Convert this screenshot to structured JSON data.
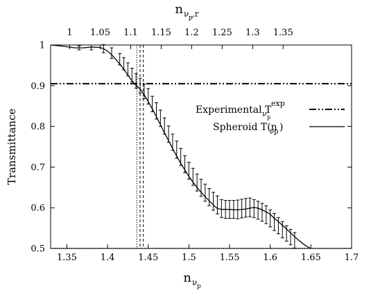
{
  "chart_data": {
    "type": "line",
    "ylabel": "Transmittance",
    "xlim": [
      1.33,
      1.7
    ],
    "ylim": [
      0.5,
      1.0
    ],
    "x_ticks": [
      1.35,
      1.4,
      1.45,
      1.5,
      1.55,
      1.6,
      1.65,
      1.7
    ],
    "x_tick_labels": [
      "1.35",
      "1.4",
      "1.45",
      "1.5",
      "1.55",
      "1.6",
      "1.65",
      "1.7"
    ],
    "y_ticks": [
      0.5,
      0.6,
      0.7,
      0.8,
      0.9,
      1.0
    ],
    "y_tick_labels": [
      "0.5",
      "0.6",
      "0.7",
      "0.8",
      "0.9",
      "1"
    ],
    "top_axis": {
      "ticks": [
        1.0,
        1.05,
        1.1,
        1.15,
        1.2,
        1.25,
        1.3,
        1.35
      ],
      "tick_labels": [
        "1",
        "1.05",
        "1.1",
        "1.15",
        "1.2",
        "1.25",
        "1.3",
        "1.35"
      ],
      "x_at_first_tick": 1.3535,
      "x_per_unit": 0.7495
    },
    "legend_position": "right",
    "series": [
      {
        "name": "Spheroid T(n_vp)",
        "style": "solid",
        "x": [
          1.33,
          1.345,
          1.36,
          1.37,
          1.38,
          1.39,
          1.395,
          1.4,
          1.405,
          1.41,
          1.415,
          1.42,
          1.425,
          1.43,
          1.435,
          1.44,
          1.445,
          1.45,
          1.455,
          1.46,
          1.465,
          1.47,
          1.475,
          1.48,
          1.485,
          1.49,
          1.495,
          1.5,
          1.505,
          1.51,
          1.515,
          1.52,
          1.525,
          1.53,
          1.535,
          1.54,
          1.55,
          1.56,
          1.57,
          1.575,
          1.58,
          1.585,
          1.59,
          1.595,
          1.6,
          1.605,
          1.61,
          1.615,
          1.62,
          1.625,
          1.63,
          1.635,
          1.64,
          1.645,
          1.65
        ],
        "y": [
          1.0,
          0.997,
          0.993,
          0.993,
          0.995,
          0.994,
          0.991,
          0.985,
          0.976,
          0.965,
          0.953,
          0.94,
          0.926,
          0.912,
          0.901,
          0.892,
          0.878,
          0.861,
          0.843,
          0.824,
          0.804,
          0.784,
          0.765,
          0.745,
          0.727,
          0.709,
          0.693,
          0.677,
          0.663,
          0.65,
          0.638,
          0.627,
          0.617,
          0.607,
          0.598,
          0.596,
          0.596,
          0.595,
          0.597,
          0.599,
          0.601,
          0.599,
          0.595,
          0.59,
          0.584,
          0.574,
          0.566,
          0.557,
          0.548,
          0.538,
          0.529,
          0.52,
          0.512,
          0.505,
          0.5
        ]
      },
      {
        "name": "Experimental T_vp^exp",
        "style": "dash-dot",
        "y_constant": 0.905
      }
    ],
    "error_bars": {
      "x": [
        1.365,
        1.38,
        1.395,
        1.405,
        1.415,
        1.42,
        1.425,
        1.43,
        1.435,
        1.44,
        1.445,
        1.45,
        1.455,
        1.46,
        1.465,
        1.47,
        1.475,
        1.48,
        1.485,
        1.49,
        1.495,
        1.5,
        1.505,
        1.51,
        1.515,
        1.52,
        1.525,
        1.53,
        1.535,
        1.54,
        1.545,
        1.55,
        1.555,
        1.56,
        1.565,
        1.57,
        1.575,
        1.58,
        1.585,
        1.59,
        1.595,
        1.6,
        1.605,
        1.61,
        1.615,
        1.62,
        1.625,
        1.63
      ],
      "y": [
        0.993,
        0.994,
        0.991,
        0.98,
        0.965,
        0.954,
        0.94,
        0.926,
        0.912,
        0.9,
        0.886,
        0.874,
        0.855,
        0.838,
        0.82,
        0.801,
        0.781,
        0.761,
        0.743,
        0.725,
        0.707,
        0.691,
        0.676,
        0.662,
        0.649,
        0.637,
        0.626,
        0.616,
        0.607,
        0.598,
        0.596,
        0.596,
        0.596,
        0.596,
        0.598,
        0.6,
        0.601,
        0.598,
        0.594,
        0.589,
        0.583,
        0.574,
        0.565,
        0.556,
        0.546,
        0.537,
        0.528,
        0.52
      ],
      "err": [
        0.005,
        0.006,
        0.01,
        0.013,
        0.014,
        0.015,
        0.016,
        0.017,
        0.018,
        0.018,
        0.018,
        0.019,
        0.019,
        0.02,
        0.02,
        0.02,
        0.02,
        0.02,
        0.021,
        0.021,
        0.021,
        0.021,
        0.021,
        0.021,
        0.021,
        0.021,
        0.021,
        0.022,
        0.022,
        0.022,
        0.022,
        0.022,
        0.022,
        0.023,
        0.023,
        0.023,
        0.023,
        0.022,
        0.022,
        0.022,
        0.022,
        0.021,
        0.021,
        0.02,
        0.02,
        0.019,
        0.019,
        0.019
      ]
    },
    "vertical_lines": {
      "x": [
        1.436,
        1.44,
        1.444
      ],
      "style": [
        "dotted",
        "dashed",
        "dashed"
      ]
    }
  },
  "text": {
    "x_label_main": "n",
    "x_label_sub": "ν",
    "x_label_subsub": "p",
    "top_label_main": "n",
    "top_label_sub": "ν",
    "top_label_subsub": "p",
    "top_label_sub2": ",r",
    "y_label": "Transmittance",
    "legend1_prefix": "Experimental T",
    "legend1_sub": "ν",
    "legend1_subsub": "p",
    "legend1_sup": "exp",
    "legend2_prefix": "Spheroid T(n",
    "legend2_sub": "νp",
    "legend2_suffix": ")"
  }
}
